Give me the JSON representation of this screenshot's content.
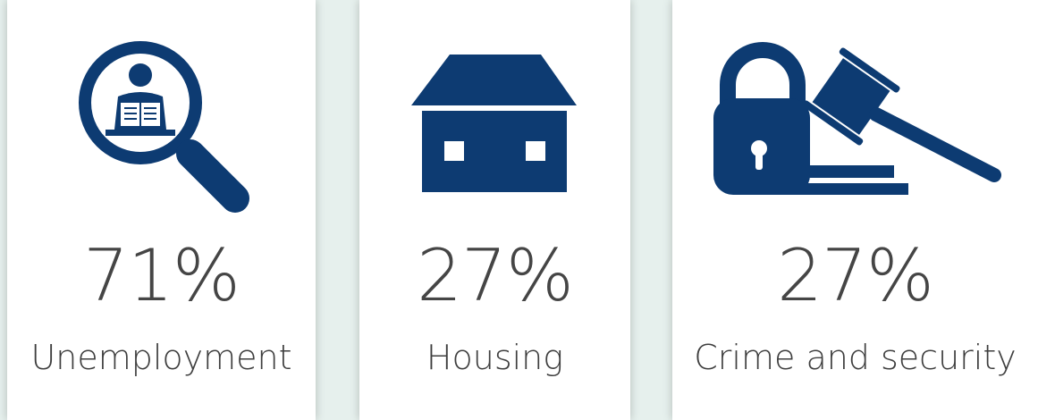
{
  "cards": [
    {
      "value": "71%",
      "label": "Unemployment"
    },
    {
      "value": "27%",
      "label": "Housing"
    },
    {
      "value": "27%",
      "label": "Crime and security"
    }
  ]
}
